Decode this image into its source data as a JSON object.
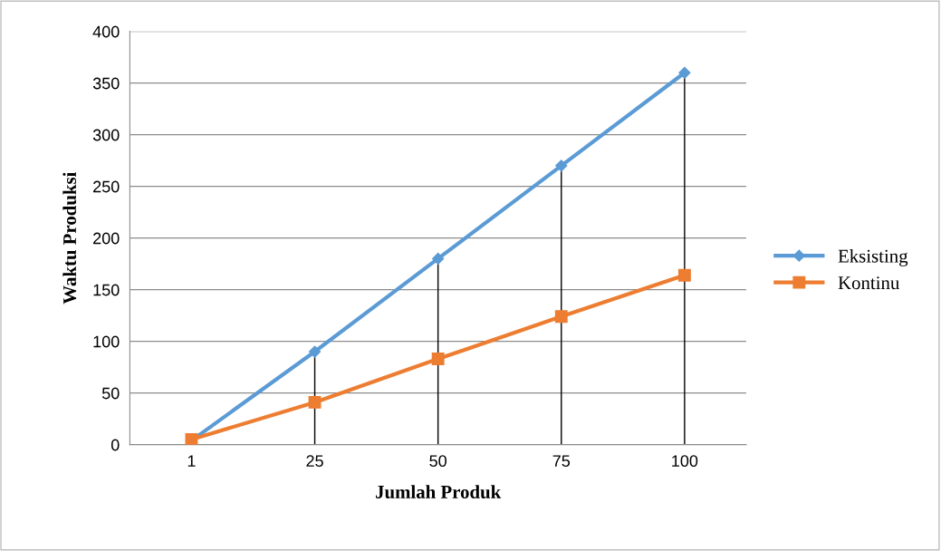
{
  "chart_data": {
    "type": "line",
    "xlabel": "Jumlah Produk",
    "ylabel": "Waktu Produksi",
    "categories": [
      "1",
      "25",
      "50",
      "75",
      "100"
    ],
    "series": [
      {
        "name": "Eksisting",
        "color": "#5b9bd5",
        "marker": "diamond",
        "values": [
          4,
          90,
          180,
          270,
          360
        ],
        "errors": [
          null,
          [
            0,
            90
          ],
          [
            0,
            180
          ],
          [
            0,
            270
          ],
          [
            0,
            360
          ]
        ]
      },
      {
        "name": "Kontinu",
        "color": "#ed7d31",
        "marker": "square",
        "values": [
          5,
          41,
          83,
          124,
          164
        ]
      }
    ],
    "ylim": [
      0,
      400
    ],
    "yticks": [
      0,
      50,
      100,
      150,
      200,
      250,
      300,
      350,
      400
    ],
    "grid": "y",
    "legend": "right",
    "line_style": "solid"
  }
}
